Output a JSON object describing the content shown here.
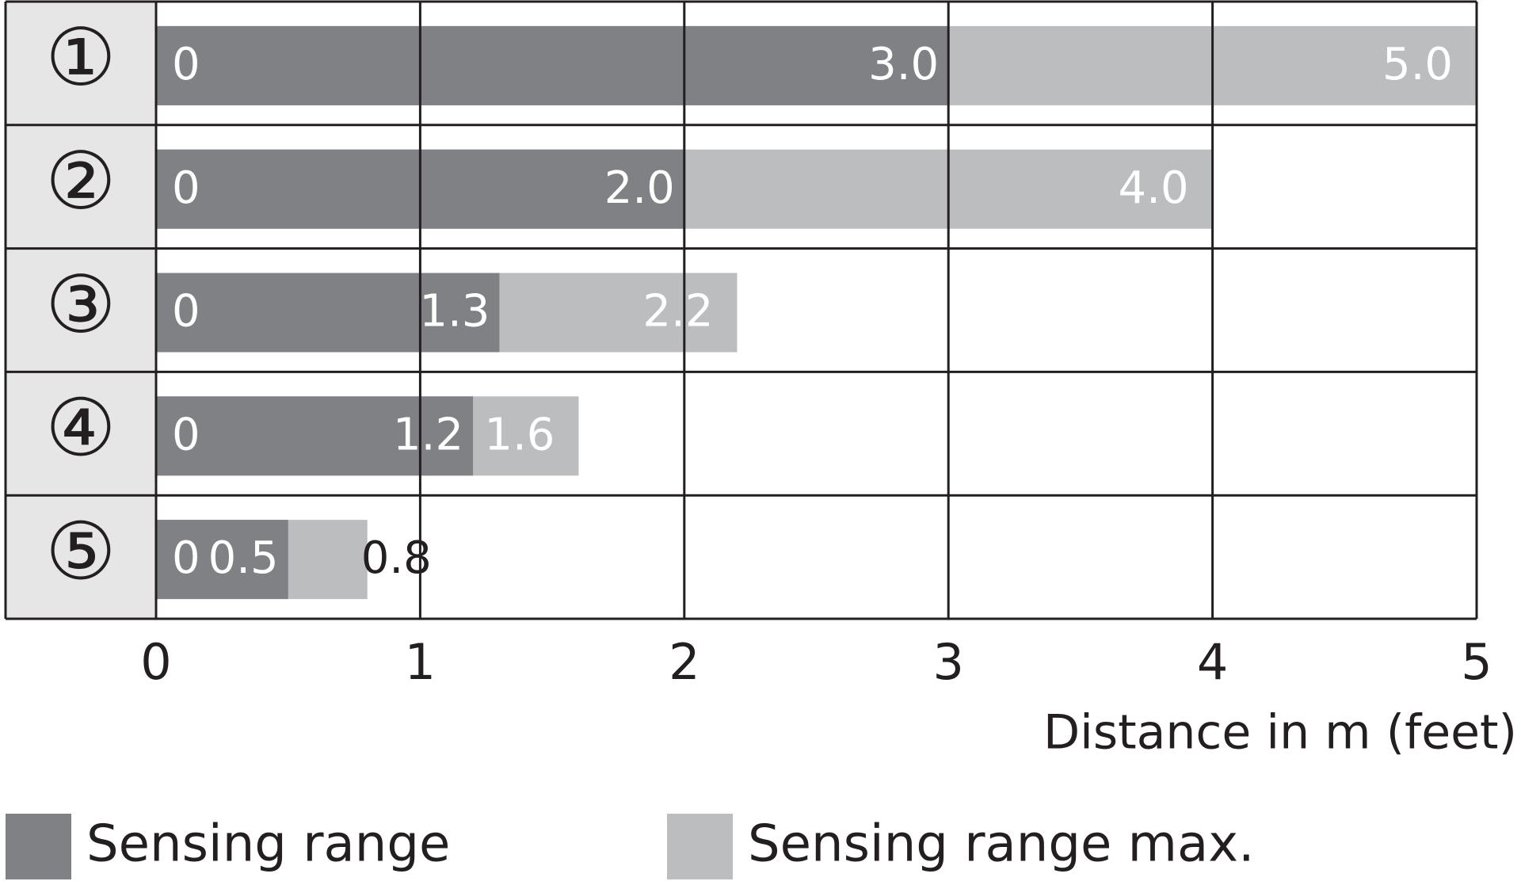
{
  "chart_data": {
    "type": "range-bar",
    "categories": [
      "①",
      "②",
      "③",
      "④",
      "⑤"
    ],
    "series": [
      {
        "name": "Sensing range",
        "color": "#808184",
        "start": [
          0,
          0,
          0,
          0,
          0
        ],
        "values": [
          3,
          2,
          1.3,
          1.2,
          0.5
        ],
        "value_labels": [
          "3.0",
          "2.0",
          "1.3",
          "1.2",
          "0.5"
        ]
      },
      {
        "name": "Sensing range max.",
        "color": "#bcbdbf",
        "values": [
          5,
          4,
          2.2,
          1.6,
          0.8
        ],
        "value_labels": [
          "5.0",
          "4.0",
          "2.2",
          "1.6",
          "0.8"
        ]
      }
    ],
    "xlim": [
      0,
      5
    ],
    "xticks": [
      0,
      1,
      2,
      3,
      4,
      5
    ],
    "grid": true,
    "x_label": "Distance in m (feet)"
  }
}
